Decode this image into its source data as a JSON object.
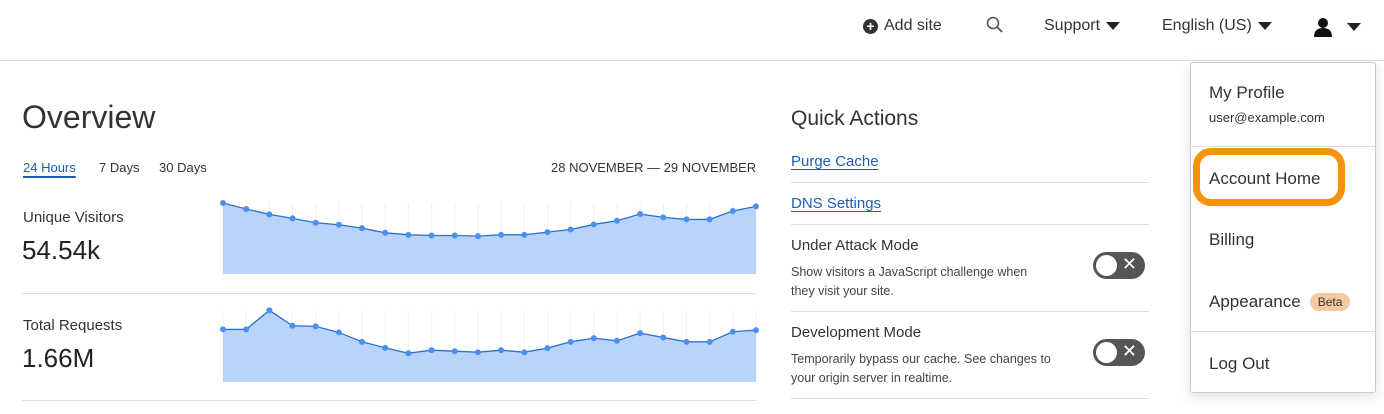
{
  "header": {
    "add_site": "Add site",
    "support": "Support",
    "language": "English (US)"
  },
  "overview": {
    "title": "Overview",
    "tabs": [
      "24 Hours",
      "7 Days",
      "30 Days"
    ],
    "active_tab": "24 Hours",
    "date_range": "28 NOVEMBER — 29 NOVEMBER",
    "metrics": [
      {
        "label": "Unique Visitors",
        "value": "54.54k"
      },
      {
        "label": "Total Requests",
        "value": "1.66M"
      }
    ]
  },
  "chart_data": [
    {
      "type": "area",
      "title": "Unique Visitors",
      "values": [
        212,
        194,
        178,
        166,
        153,
        147,
        137,
        123,
        117,
        115,
        115,
        113,
        117,
        117,
        125,
        133,
        148,
        159,
        179,
        169,
        163,
        163,
        188,
        202
      ],
      "ylim": [
        0,
        215
      ],
      "grid": "vertical",
      "color": "#4a90f0",
      "fill": "#b8d4fb"
    },
    {
      "type": "area",
      "title": "Total Requests",
      "values": [
        157,
        157,
        214,
        168,
        166,
        148,
        120,
        102,
        86,
        95,
        92,
        89,
        95,
        89,
        101,
        120,
        131,
        123,
        146,
        133,
        120,
        120,
        150,
        155
      ],
      "ylim": [
        0,
        215
      ],
      "grid": "vertical",
      "color": "#4a90f0",
      "fill": "#b8d4fb"
    }
  ],
  "quick_actions": {
    "title": "Quick Actions",
    "links": [
      "Purge Cache",
      "DNS Settings"
    ],
    "toggles": [
      {
        "label": "Under Attack Mode",
        "desc": "Show visitors a JavaScript challenge when they visit your site.",
        "on": false
      },
      {
        "label": "Development Mode",
        "desc": "Temporarily bypass our cache. See changes to your origin server in realtime.",
        "on": false
      }
    ]
  },
  "menu": {
    "profile": "My Profile",
    "email": "user@example.com",
    "account_home": "Account Home",
    "billing": "Billing",
    "appearance": "Appearance",
    "beta": "Beta",
    "logout": "Log Out",
    "highlight_color": "#f7930a"
  }
}
